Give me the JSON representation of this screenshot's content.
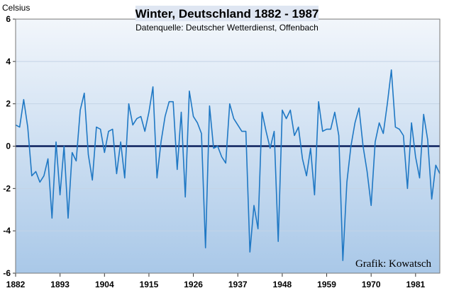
{
  "chart_data": {
    "type": "line",
    "title": "Winter, Deutschland 1882 - 1987",
    "subtitle": "Datenquelle: Deutscher Wetterdienst, Offenbach",
    "ylabel": "Celsius",
    "credit": "Grafik: Kowatsch",
    "ylim": [
      -6,
      6
    ],
    "yticks": [
      -6,
      -4,
      -2,
      0,
      2,
      4,
      6
    ],
    "xlim": [
      1882,
      1987
    ],
    "xticks": [
      1882,
      1893,
      1904,
      1915,
      1926,
      1937,
      1948,
      1959,
      1970,
      1981
    ],
    "reference_line": 0,
    "grid": true,
    "colors": {
      "series": "#1f78c4",
      "zero_line": "#0a1f5c",
      "plot_top": "#f2f6fb",
      "plot_bottom": "#a9c8e8",
      "title_box": "#dfe6f2"
    },
    "series": [
      {
        "x": [
          1882,
          1883,
          1884,
          1885,
          1886,
          1887,
          1888,
          1889,
          1890,
          1891,
          1892,
          1893,
          1894,
          1895,
          1896,
          1897,
          1898,
          1899,
          1900,
          1901,
          1902,
          1903,
          1904,
          1905,
          1906,
          1907,
          1908,
          1909,
          1910,
          1911,
          1912,
          1913,
          1914,
          1915,
          1916,
          1917,
          1918,
          1919,
          1920,
          1921,
          1922,
          1923,
          1924,
          1925,
          1926,
          1927,
          1928,
          1929,
          1930,
          1931,
          1932,
          1933,
          1934,
          1935,
          1936,
          1937,
          1938,
          1939,
          1940,
          1941,
          1942,
          1943,
          1944,
          1945,
          1946,
          1947,
          1948,
          1949,
          1950,
          1951,
          1952,
          1953,
          1954,
          1955,
          1956,
          1957,
          1958,
          1959,
          1960,
          1961,
          1962,
          1963,
          1964,
          1965,
          1966,
          1967,
          1968,
          1969,
          1970,
          1971,
          1972,
          1973,
          1974,
          1975,
          1976,
          1977,
          1978,
          1979,
          1980,
          1981,
          1982,
          1983,
          1984,
          1985,
          1986,
          1987
        ],
        "y": [
          1.0,
          0.9,
          2.2,
          0.9,
          -1.4,
          -1.2,
          -1.7,
          -1.4,
          -0.6,
          -3.4,
          0.2,
          -2.3,
          0.0,
          -3.4,
          -0.3,
          -0.7,
          1.7,
          2.5,
          -0.4,
          -1.6,
          0.9,
          0.8,
          -0.3,
          0.7,
          0.8,
          -1.3,
          0.2,
          -1.5,
          2.0,
          1.0,
          1.3,
          1.4,
          0.7,
          1.6,
          2.8,
          -1.5,
          0.2,
          1.4,
          2.1,
          2.1,
          -1.1,
          1.6,
          -2.4,
          2.6,
          1.4,
          1.1,
          0.6,
          -4.8,
          1.9,
          -0.1,
          0.0,
          -0.5,
          -0.8,
          2.0,
          1.3,
          1.0,
          0.7,
          0.7,
          -5.0,
          -2.8,
          -3.9,
          1.6,
          0.7,
          -0.1,
          0.7,
          -4.5,
          1.7,
          1.3,
          1.7,
          0.5,
          0.9,
          -0.6,
          -1.4,
          -0.1,
          -2.3,
          2.1,
          0.7,
          0.8,
          0.8,
          1.6,
          0.5,
          -5.4,
          -1.7,
          0.0,
          1.1,
          1.8,
          0.0,
          -1.2,
          -2.8,
          0.2,
          1.1,
          0.6,
          2.0,
          3.6,
          0.9,
          0.8,
          0.5,
          -2.0,
          1.1,
          -0.5,
          -1.5,
          1.5,
          0.3,
          -2.5,
          -0.9,
          -1.3
        ]
      }
    ]
  }
}
